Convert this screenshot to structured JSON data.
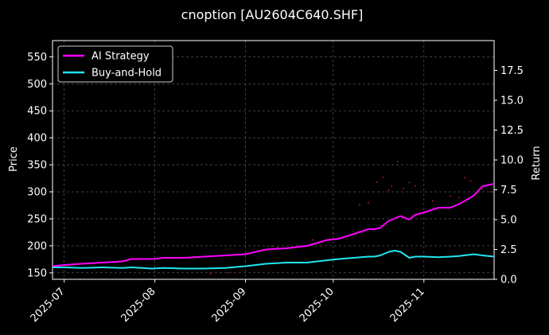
{
  "chart_data": {
    "type": "line",
    "title": "cnoption [AU2604C640.SHF]",
    "ylabel_left": "Price",
    "ylabel_right": "Return",
    "x_range": [
      "2025-06-27",
      "2025-11-25"
    ],
    "x_ticks": [
      "2025-07",
      "2025-08",
      "2025-09",
      "2025-10",
      "2025-11"
    ],
    "y_left_range": [
      138,
      580
    ],
    "y_left_ticks": [
      "150",
      "200",
      "250",
      "300",
      "350",
      "400",
      "450",
      "500",
      "550"
    ],
    "y_right_range": [
      0,
      20
    ],
    "y_right_ticks": [
      "0.0",
      "2.5",
      "5.0",
      "7.5",
      "10.0",
      "12.5",
      "15.0",
      "17.5"
    ],
    "grid": true,
    "legend_position": "top-left",
    "series": [
      {
        "name": "AI Strategy",
        "axis": "right",
        "color": "#ff00ff",
        "x": [
          "2025-06-27",
          "2025-07-01",
          "2025-07-07",
          "2025-07-14",
          "2025-07-21",
          "2025-07-24",
          "2025-07-31",
          "2025-08-04",
          "2025-08-11",
          "2025-08-18",
          "2025-08-25",
          "2025-09-01",
          "2025-09-08",
          "2025-09-15",
          "2025-09-22",
          "2025-09-29",
          "2025-10-03",
          "2025-10-08",
          "2025-10-13",
          "2025-10-15",
          "2025-10-17",
          "2025-10-20",
          "2025-10-22",
          "2025-10-24",
          "2025-10-27",
          "2025-10-29",
          "2025-11-01",
          "2025-11-06",
          "2025-11-10",
          "2025-11-13",
          "2025-11-18",
          "2025-11-21",
          "2025-11-25"
        ],
        "y": [
          1.1,
          1.2,
          1.3,
          1.4,
          1.5,
          1.7,
          1.7,
          1.8,
          1.8,
          1.9,
          2.0,
          2.1,
          2.5,
          2.6,
          2.8,
          3.3,
          3.4,
          3.8,
          4.2,
          4.2,
          4.3,
          4.9,
          5.1,
          5.3,
          5.0,
          5.4,
          5.6,
          6.0,
          6.0,
          6.3,
          7.0,
          7.8,
          8.0
        ]
      },
      {
        "name": "Buy-and-Hold",
        "axis": "right",
        "color": "#22e6f0",
        "x": [
          "2025-06-27",
          "2025-07-01",
          "2025-07-07",
          "2025-07-14",
          "2025-07-21",
          "2025-07-24",
          "2025-07-31",
          "2025-08-04",
          "2025-08-11",
          "2025-08-18",
          "2025-08-25",
          "2025-09-01",
          "2025-09-08",
          "2025-09-15",
          "2025-09-22",
          "2025-09-29",
          "2025-10-03",
          "2025-10-08",
          "2025-10-13",
          "2025-10-15",
          "2025-10-17",
          "2025-10-20",
          "2025-10-22",
          "2025-10-24",
          "2025-10-27",
          "2025-10-29",
          "2025-11-01",
          "2025-11-06",
          "2025-11-10",
          "2025-11-13",
          "2025-11-18",
          "2025-11-21",
          "2025-11-25"
        ],
        "y": [
          1.0,
          1.0,
          0.95,
          1.0,
          0.95,
          1.0,
          0.9,
          0.95,
          0.9,
          0.9,
          0.95,
          1.1,
          1.3,
          1.4,
          1.4,
          1.6,
          1.7,
          1.8,
          1.9,
          1.9,
          2.0,
          2.3,
          2.4,
          2.3,
          1.8,
          1.9,
          1.9,
          1.85,
          1.9,
          1.95,
          2.1,
          2.0,
          1.9
        ]
      }
    ],
    "scatter": {
      "axis": "left",
      "color": "#d6103a",
      "points": [
        [
          "2025-10-10",
          276
        ],
        [
          "2025-10-13",
          280
        ],
        [
          "2025-10-16",
          318
        ],
        [
          "2025-10-18",
          327
        ],
        [
          "2025-10-20",
          303
        ],
        [
          "2025-10-21",
          311
        ],
        [
          "2025-10-23",
          356
        ],
        [
          "2025-10-25",
          306
        ],
        [
          "2025-10-27",
          317
        ],
        [
          "2025-10-29",
          311
        ],
        [
          "2025-11-04",
          283
        ],
        [
          "2025-11-10",
          292
        ],
        [
          "2025-11-13",
          289
        ],
        [
          "2025-11-15",
          326
        ],
        [
          "2025-11-17",
          320
        ],
        [
          "2025-11-19",
          297
        ],
        [
          "2025-11-21",
          305
        ],
        [
          "2025-11-24",
          300
        ],
        [
          "2025-08-20",
          148
        ],
        [
          "2025-08-26",
          150
        ],
        [
          "2025-09-10",
          199
        ],
        [
          "2025-09-12",
          197
        ],
        [
          "2025-09-24",
          211
        ],
        [
          "2025-10-01",
          223
        ]
      ]
    }
  }
}
